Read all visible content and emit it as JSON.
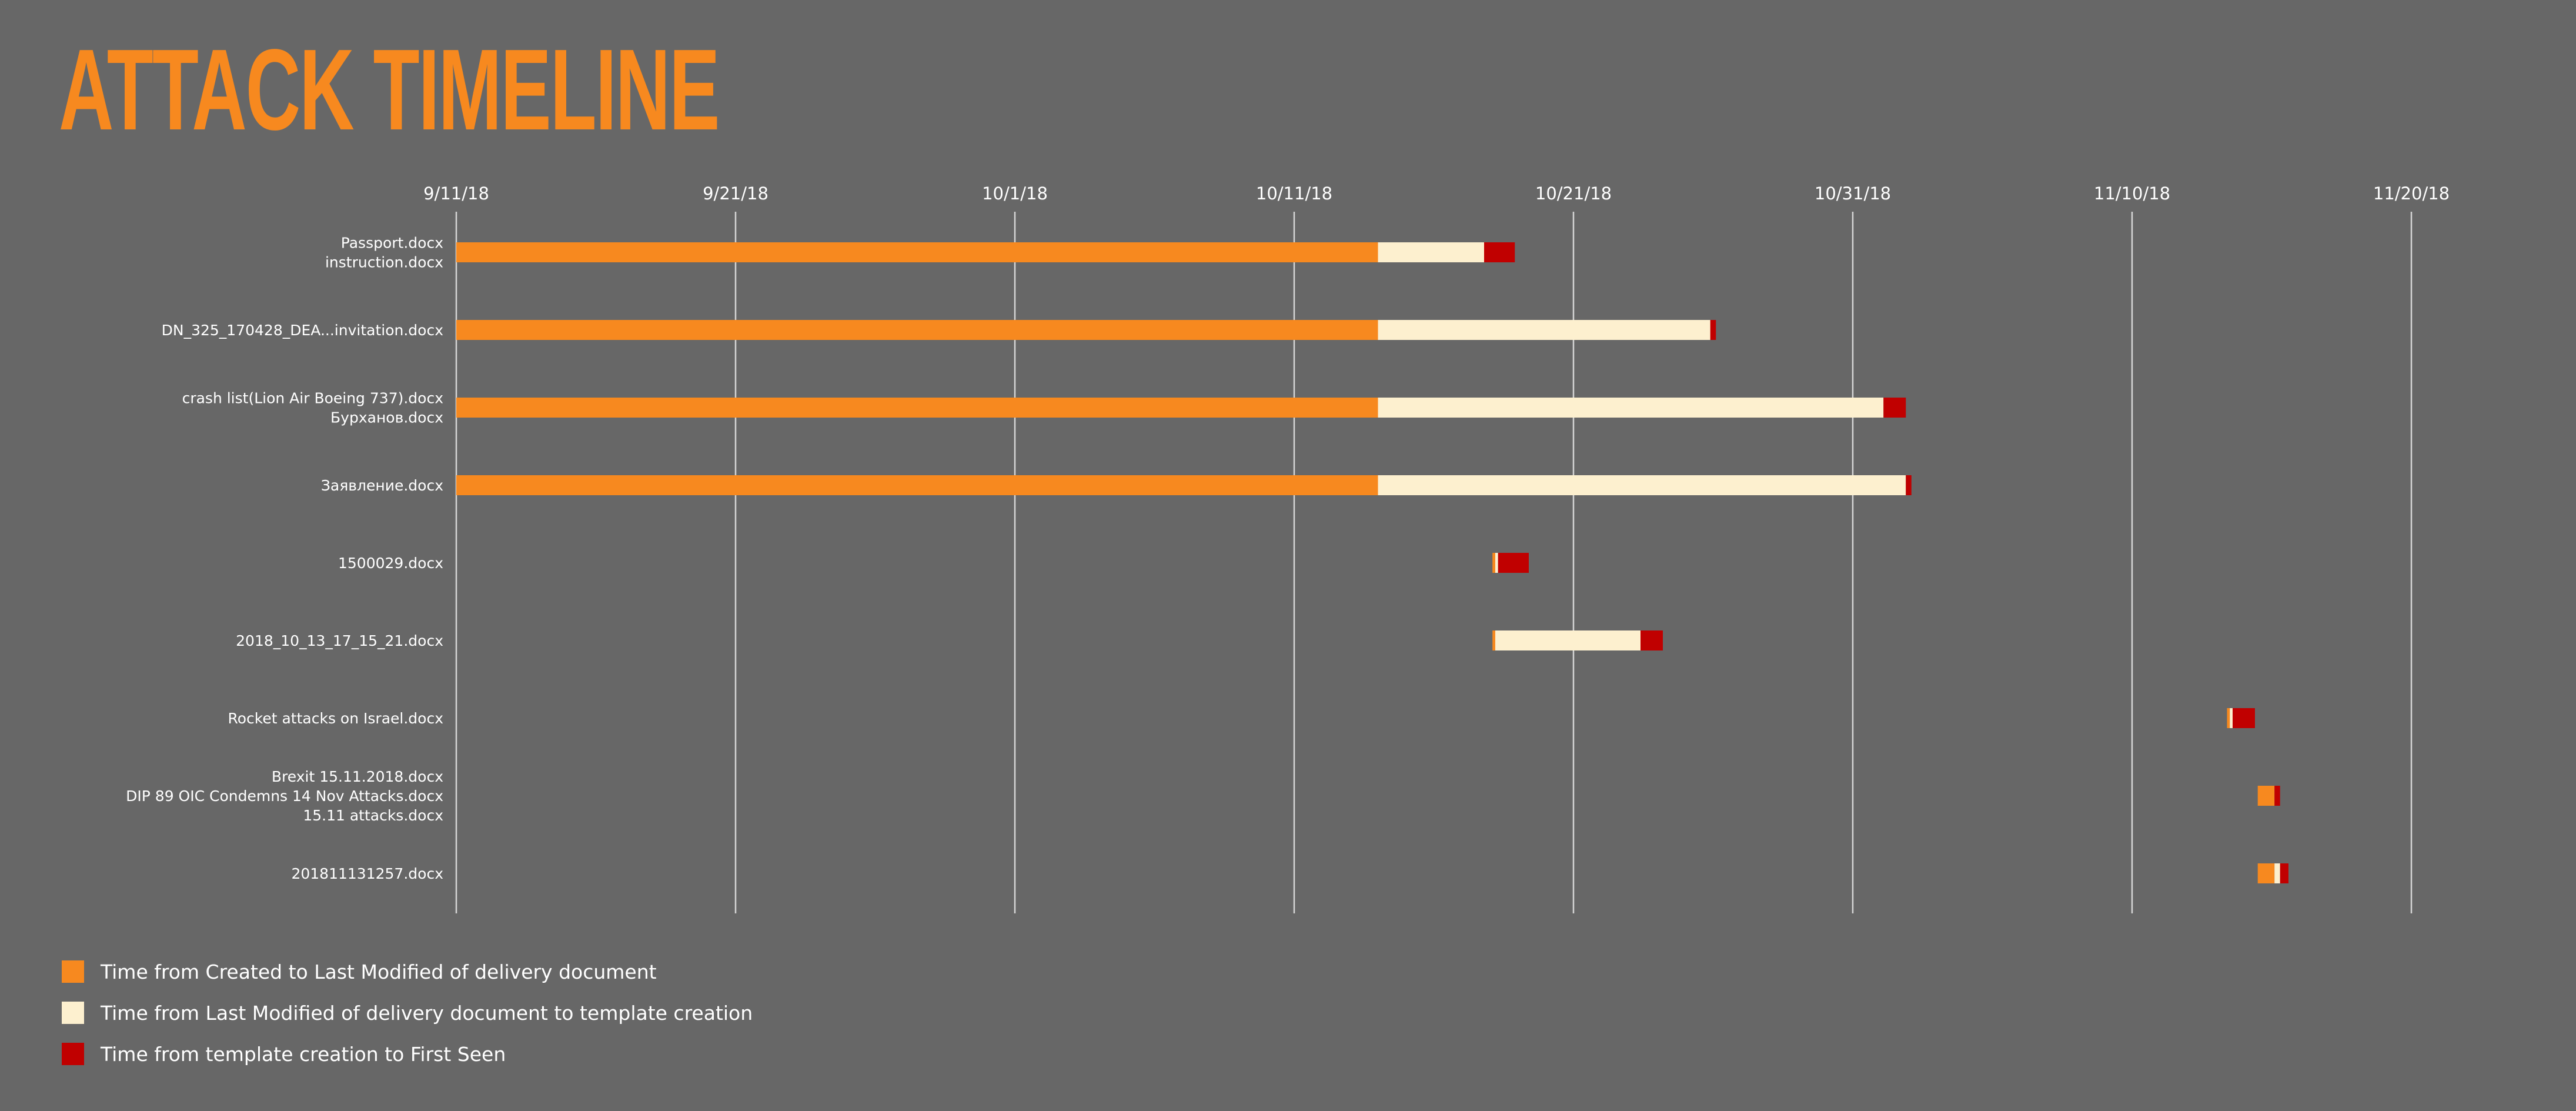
{
  "chart_data": {
    "type": "bar",
    "orientation": "horizontal-stacked-timeline",
    "title": "ATTACK TIMELINE",
    "x_axis": {
      "type": "date",
      "ticks": [
        "9/11/18",
        "9/21/18",
        "10/1/18",
        "10/11/18",
        "10/21/18",
        "10/31/18",
        "11/10/18",
        "11/20/18"
      ],
      "range": [
        "2018-09-11",
        "2018-11-20"
      ]
    },
    "grid": "vertical",
    "legend_position": "bottom-left",
    "series": [
      {
        "name": "Time from Created to Last Modified of delivery document",
        "color": "#f7891f"
      },
      {
        "name": "Time from Last Modified of delivery document to template creation",
        "color": "#fdf0cf"
      },
      {
        "name": "Time from template creation to First Seen",
        "color": "#c00000"
      }
    ],
    "rows": [
      {
        "labels": [
          "Passport.docx",
          "instruction.docx"
        ],
        "created": "2018-09-11",
        "modified": "2018-10-14",
        "template": "2018-10-17.8",
        "first_seen": "2018-10-18.9"
      },
      {
        "labels": [
          "DN_325_170428_DEA...invitation.docx"
        ],
        "created": "2018-09-11",
        "modified": "2018-10-14",
        "template": "2018-10-25.9",
        "first_seen": "2018-10-26.1"
      },
      {
        "labels": [
          "crash list(Lion Air Boeing 737).docx",
          "Бурханов.docx"
        ],
        "created": "2018-09-11",
        "modified": "2018-10-14",
        "template": "2018-11-01.1",
        "first_seen": "2018-11-01.9"
      },
      {
        "labels": [
          "Заявление.docx"
        ],
        "created": "2018-09-11",
        "modified": "2018-10-14",
        "template": "2018-11-01.9",
        "first_seen": "2018-11-02.1"
      },
      {
        "labels": [
          "1500029.docx"
        ],
        "created": "2018-10-18.1",
        "modified": "2018-10-18.2",
        "template": "2018-10-18.3",
        "first_seen": "2018-10-19.4"
      },
      {
        "labels": [
          "2018_10_13_17_15_21.docx"
        ],
        "created": "2018-10-18.1",
        "modified": "2018-10-18.2",
        "template": "2018-10-23.4",
        "first_seen": "2018-10-24.2"
      },
      {
        "labels": [
          "Rocket attacks on Israel.docx"
        ],
        "created": "2018-11-13.4",
        "modified": "2018-11-13.5",
        "template": "2018-11-13.6",
        "first_seen": "2018-11-14.4"
      },
      {
        "labels": [
          "Brexit 15.11.2018.docx",
          "DIP 89 OIC Condemns 14 Nov Attacks.docx",
          "15.11 attacks.docx"
        ],
        "created": "2018-11-14.5",
        "modified": "2018-11-15.1",
        "template": "2018-11-15.1",
        "first_seen": "2018-11-15.3"
      },
      {
        "labels": [
          "201811131257.docx"
        ],
        "created": "2018-11-14.5",
        "modified": "2018-11-15.1",
        "template": "2018-11-15.3",
        "first_seen": "2018-11-15.6"
      }
    ]
  }
}
